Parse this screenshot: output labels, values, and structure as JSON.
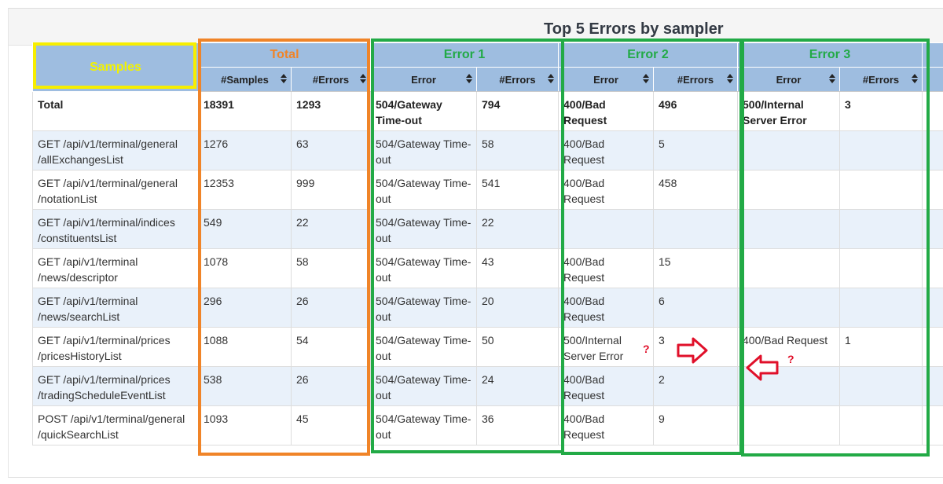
{
  "title": "Top 5 Errors by sampler",
  "groups": {
    "samples": "Samples",
    "total": "Total",
    "error1": "Error 1",
    "error2": "Error 2",
    "error3": "Error 3"
  },
  "columns": {
    "samples": "#Samples",
    "errors": "#Errors",
    "error": "Error"
  },
  "annotation_mark": "?",
  "rows": [
    {
      "sampler": "Total",
      "samples": "18391",
      "errors": "1293",
      "e1": "504/Gateway Time-out",
      "e1n": "794",
      "e2": "400/Bad Request",
      "e2n": "496",
      "e3": "500/Internal Server Error",
      "e3n": "3"
    },
    {
      "sampler": "GET /api/v1/terminal/general /allExchangesList",
      "samples": "1276",
      "errors": "63",
      "e1": "504/Gateway Time-out",
      "e1n": "58",
      "e2": "400/Bad Request",
      "e2n": "5",
      "e3": "",
      "e3n": ""
    },
    {
      "sampler": "GET /api/v1/terminal/general /notationList",
      "samples": "12353",
      "errors": "999",
      "e1": "504/Gateway Time-out",
      "e1n": "541",
      "e2": "400/Bad Request",
      "e2n": "458",
      "e3": "",
      "e3n": ""
    },
    {
      "sampler": "GET /api/v1/terminal/indices /constituentsList",
      "samples": "549",
      "errors": "22",
      "e1": "504/Gateway Time-out",
      "e1n": "22",
      "e2": "",
      "e2n": "",
      "e3": "",
      "e3n": ""
    },
    {
      "sampler": "GET /api/v1/terminal /news/descriptor",
      "samples": "1078",
      "errors": "58",
      "e1": "504/Gateway Time-out",
      "e1n": "43",
      "e2": "400/Bad Request",
      "e2n": "15",
      "e3": "",
      "e3n": ""
    },
    {
      "sampler": "GET /api/v1/terminal /news/searchList",
      "samples": "296",
      "errors": "26",
      "e1": "504/Gateway Time-out",
      "e1n": "20",
      "e2": "400/Bad Request",
      "e2n": "6",
      "e3": "",
      "e3n": ""
    },
    {
      "sampler": "GET /api/v1/terminal/prices /pricesHistoryList",
      "samples": "1088",
      "errors": "54",
      "e1": "504/Gateway Time-out",
      "e1n": "50",
      "e2": "500/Internal Server Error",
      "e2n": "3",
      "e3": "400/Bad Request",
      "e3n": "1"
    },
    {
      "sampler": "GET /api/v1/terminal/prices /tradingScheduleEventList",
      "samples": "538",
      "errors": "26",
      "e1": "504/Gateway Time-out",
      "e1n": "24",
      "e2": "400/Bad Request",
      "e2n": "2",
      "e3": "",
      "e3n": ""
    },
    {
      "sampler": "POST /api/v1/terminal/general /quickSearchList",
      "samples": "1093",
      "errors": "45",
      "e1": "504/Gateway Time-out",
      "e1n": "36",
      "e2": "400/Bad Request",
      "e2n": "9",
      "e3": "",
      "e3n": ""
    }
  ],
  "colors": {
    "header_bg": "#9ebde0",
    "alt_row_bg": "#e9f1fa",
    "highlight_yellow": "#f7ee00",
    "highlight_orange": "#f08428",
    "highlight_green": "#22aa46",
    "arrow_red": "#e0102a"
  }
}
